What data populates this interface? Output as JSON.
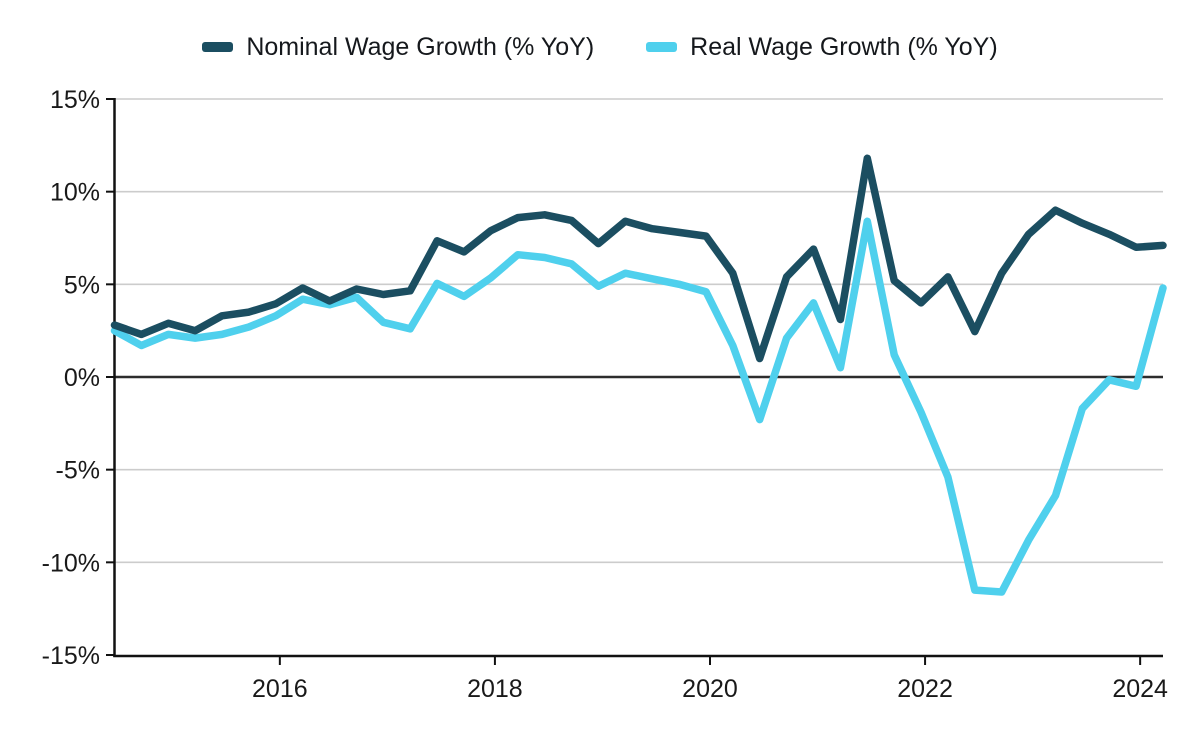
{
  "chart_data": {
    "type": "line",
    "title": "",
    "categories": [
      "2014-Q3",
      "2014-Q4",
      "2015-Q1",
      "2015-Q2",
      "2015-Q3",
      "2015-Q4",
      "2016-Q1",
      "2016-Q2",
      "2016-Q3",
      "2016-Q4",
      "2017-Q1",
      "2017-Q2",
      "2017-Q3",
      "2017-Q4",
      "2018-Q1",
      "2018-Q2",
      "2018-Q3",
      "2018-Q4",
      "2019-Q1",
      "2019-Q2",
      "2019-Q3",
      "2019-Q4",
      "2020-Q1",
      "2020-Q2",
      "2020-Q3",
      "2020-Q4",
      "2021-Q1",
      "2021-Q2",
      "2021-Q3",
      "2021-Q4",
      "2022-Q1",
      "2022-Q2",
      "2022-Q3",
      "2022-Q4",
      "2023-Q1",
      "2023-Q2",
      "2023-Q3",
      "2023-Q4",
      "2024-Q1",
      "2024-Q2"
    ],
    "series": [
      {
        "name": "Nominal Wage Growth (% YoY)",
        "color": "#1b4e61",
        "values": [
          2.8,
          2.3,
          2.9,
          2.5,
          3.3,
          3.5,
          3.95,
          4.8,
          4.1,
          4.75,
          4.45,
          4.65,
          7.35,
          6.75,
          7.9,
          8.6,
          8.75,
          8.45,
          7.2,
          8.4,
          8.0,
          7.8,
          7.6,
          5.6,
          1.0,
          5.4,
          6.9,
          3.1,
          11.8,
          5.2,
          4.0,
          5.4,
          2.45,
          5.6,
          7.7,
          9.0,
          8.3,
          7.7,
          7.0,
          7.1
        ]
      },
      {
        "name": "Real Wage Growth (% YoY)",
        "color": "#4fd0ed",
        "values": [
          2.5,
          1.7,
          2.3,
          2.1,
          2.3,
          2.7,
          3.3,
          4.2,
          3.9,
          4.3,
          2.95,
          2.6,
          5.05,
          4.35,
          5.35,
          6.6,
          6.45,
          6.1,
          4.9,
          5.6,
          5.3,
          5.0,
          4.6,
          1.7,
          -2.3,
          2.1,
          4.0,
          0.5,
          8.4,
          1.2,
          -1.9,
          -5.4,
          -11.5,
          -11.6,
          -8.8,
          -6.4,
          -1.7,
          -0.15,
          -0.5,
          4.8
        ]
      }
    ],
    "y_axis": {
      "min": -15,
      "max": 15,
      "step": 5,
      "tick_values": [
        15,
        10,
        5,
        0,
        -5,
        -10,
        -15
      ],
      "tick_labels": [
        "15%",
        "10%",
        "5%",
        "0%",
        "-5%",
        "-10%",
        "-15%"
      ]
    },
    "x_axis": {
      "tick_labels": [
        "2016",
        "2018",
        "2020",
        "2022",
        "2024"
      ]
    },
    "grid": "horizontal",
    "legend_position": "top",
    "colors": {
      "grid": "#cccccc",
      "zero_line": "#2d2d2d",
      "axis": "#111111",
      "text": "#191919",
      "background": "#ffffff"
    }
  }
}
